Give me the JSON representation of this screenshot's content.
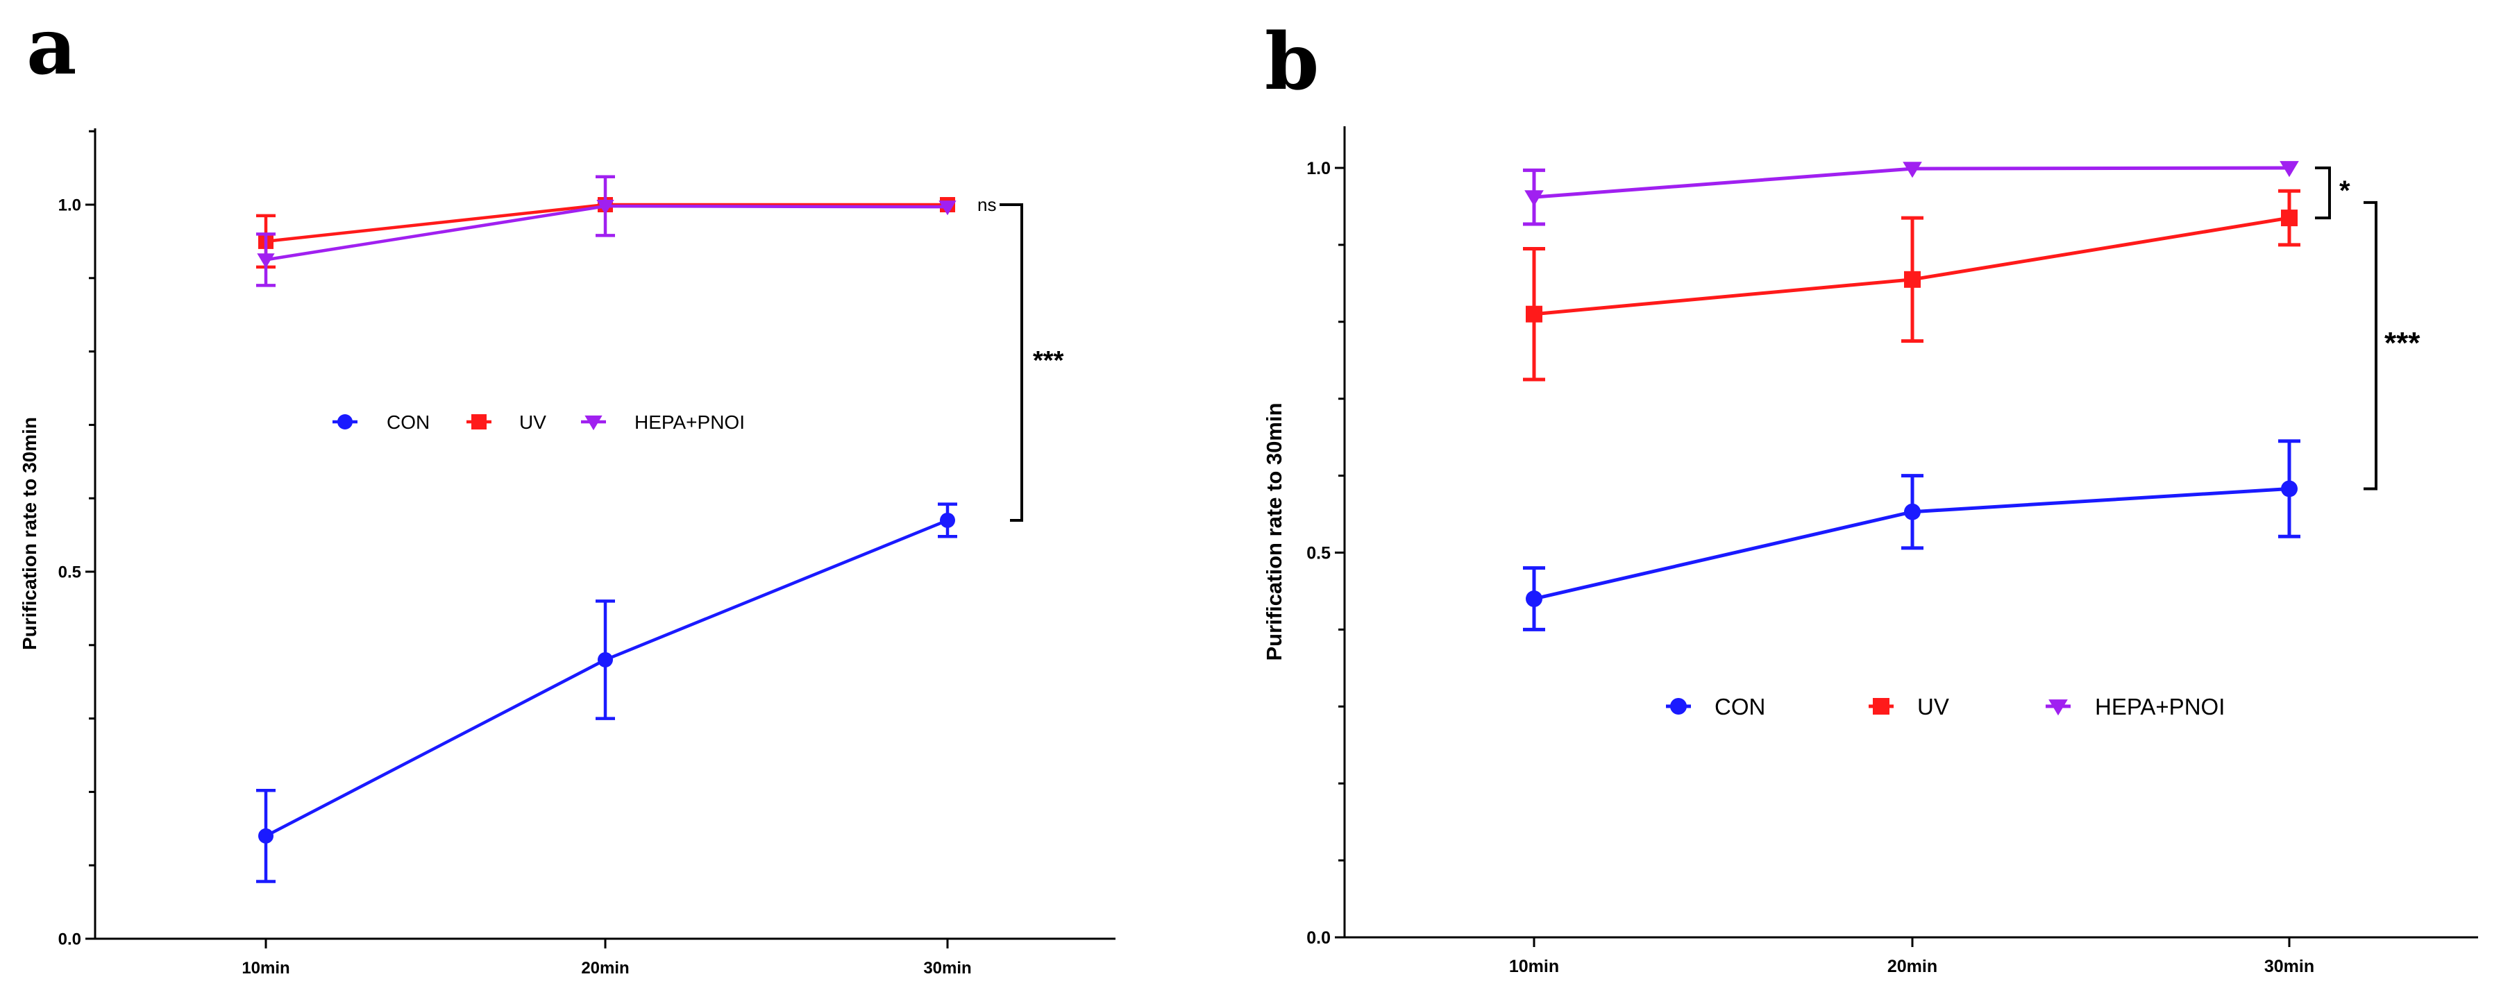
{
  "chart_data": [
    {
      "panel": "a",
      "type": "line",
      "title": "",
      "xlabel": "",
      "ylabel": "Purification rate to 30min",
      "categories": [
        "10min",
        "20min",
        "30min"
      ],
      "ylim": [
        0,
        1.1
      ],
      "yticks": [
        0.0,
        0.5,
        1.0
      ],
      "ytick_labels": [
        "0.0",
        "0.5",
        "1.0"
      ],
      "legend_position": "center",
      "series": [
        {
          "name": "CON",
          "color": "#1a1aff",
          "marker": "circle",
          "values": [
            0.14,
            0.38,
            0.57
          ],
          "errors": [
            0.062,
            0.08,
            0.022
          ]
        },
        {
          "name": "UV",
          "color": "#ff1a1a",
          "marker": "square",
          "values": [
            0.95,
            1.0,
            1.0
          ],
          "errors": [
            0.035,
            0.0,
            0.0
          ]
        },
        {
          "name": "HEPA+PNOI",
          "color": "#a020f0",
          "marker": "triangle-down",
          "values": [
            0.925,
            0.998,
            0.997
          ],
          "errors": [
            0.035,
            0.04,
            0.0
          ]
        }
      ],
      "significance": [
        {
          "label": "ns",
          "from_value": 1.0,
          "to_value": 1.0
        },
        {
          "label": "***",
          "from_value": 1.0,
          "to_value": 0.57
        }
      ]
    },
    {
      "panel": "b",
      "type": "line",
      "title": "",
      "xlabel": "",
      "ylabel": "Purification rate to 30min",
      "categories": [
        "10min",
        "20min",
        "30min"
      ],
      "ylim": [
        0,
        1.05
      ],
      "yticks": [
        0.0,
        0.5,
        1.0
      ],
      "ytick_labels": [
        "0.0",
        "0.5",
        "1.0"
      ],
      "legend_position": "center-bottom",
      "series": [
        {
          "name": "CON",
          "color": "#1a1aff",
          "marker": "circle",
          "values": [
            0.44,
            0.553,
            0.583
          ],
          "errors": [
            0.04,
            0.047,
            0.062
          ]
        },
        {
          "name": "UV",
          "color": "#ff1a1a",
          "marker": "square",
          "values": [
            0.81,
            0.855,
            0.935
          ],
          "errors": [
            0.085,
            0.08,
            0.035
          ]
        },
        {
          "name": "HEPA+PNOI",
          "color": "#a020f0",
          "marker": "triangle-down",
          "values": [
            0.962,
            0.999,
            1.0
          ],
          "errors": [
            0.035,
            0.0,
            0.0
          ]
        }
      ],
      "significance": [
        {
          "label": "*",
          "from_value": 1.0,
          "to_value": 0.935
        },
        {
          "label": "***",
          "from_value": 0.955,
          "to_value": 0.583
        }
      ]
    }
  ]
}
